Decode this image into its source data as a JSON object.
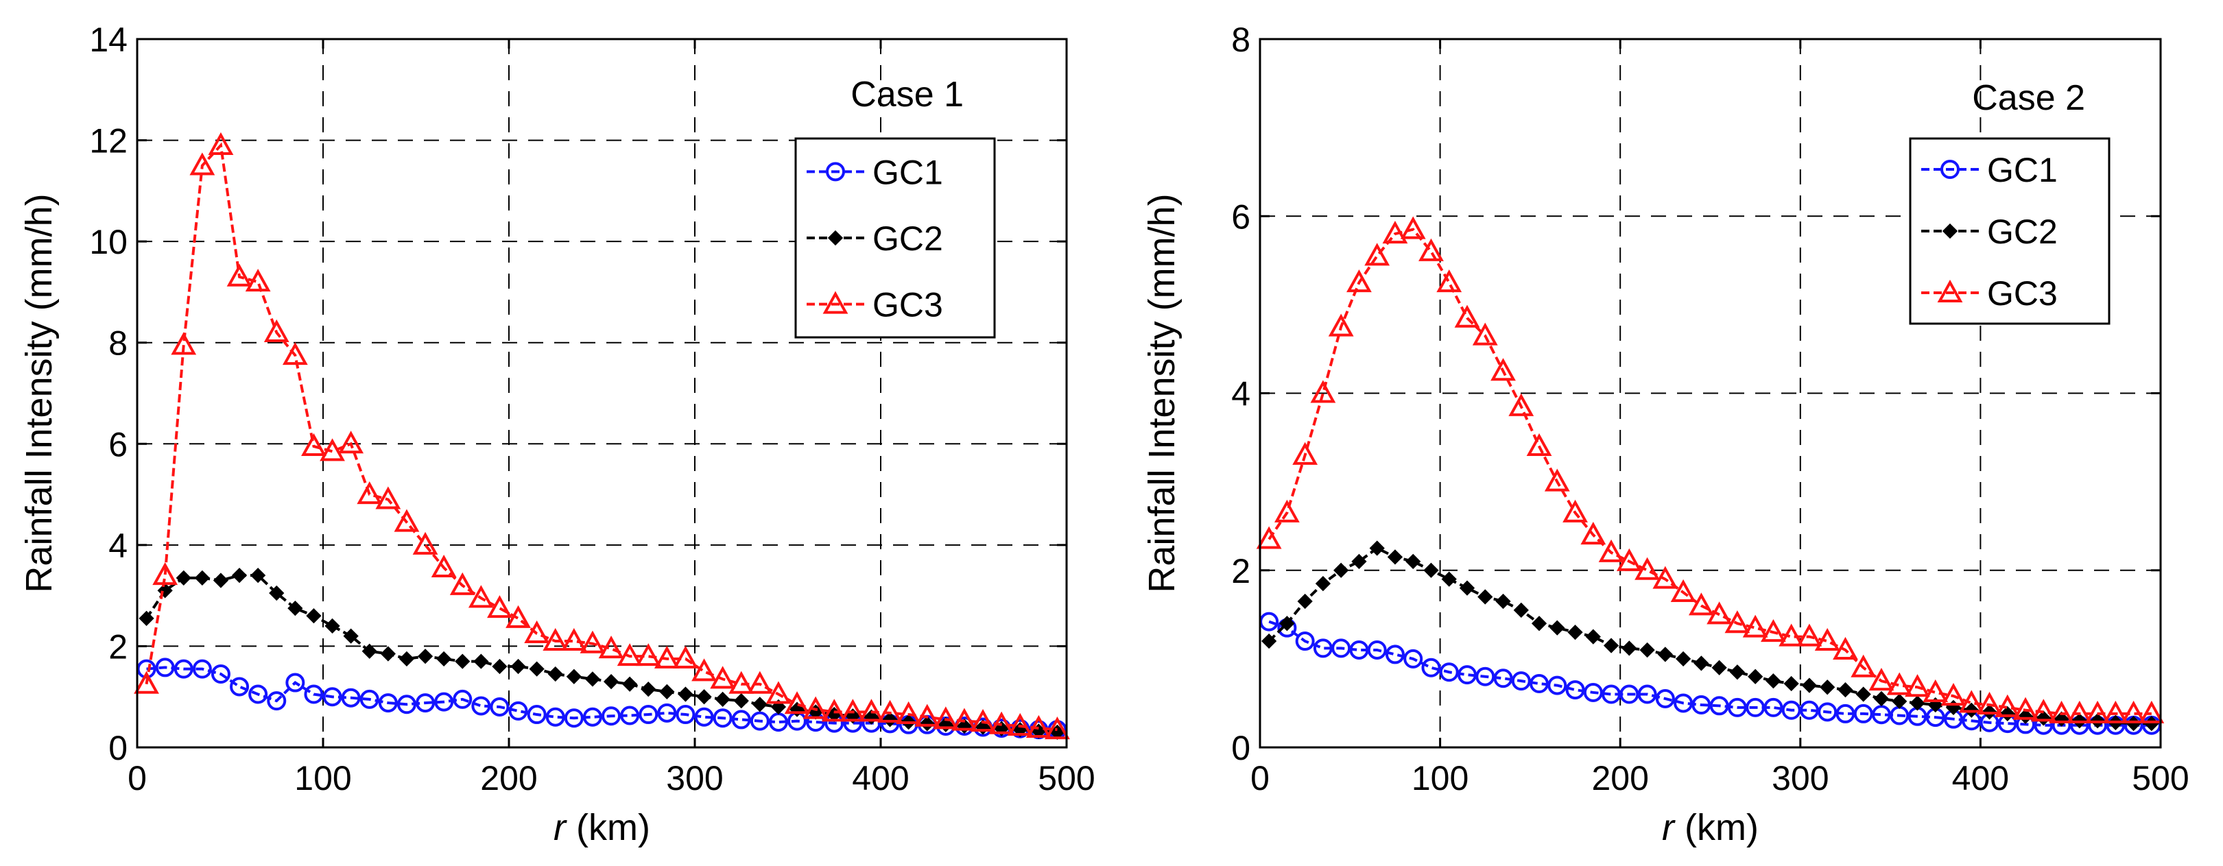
{
  "chart_data": [
    {
      "type": "line",
      "annotation": "Case 1",
      "xlabel_italic": "r",
      "xlabel_rest": " (km)",
      "ylabel": "Rainfall Intensity (mm/h)",
      "xlim": [
        0,
        500
      ],
      "ylim": [
        0,
        14
      ],
      "xticks": [
        0,
        100,
        200,
        300,
        400,
        500
      ],
      "yticks": [
        0,
        2,
        4,
        6,
        8,
        10,
        12,
        14
      ],
      "grid": true,
      "legend": "upper-right",
      "x": [
        5,
        15,
        25,
        35,
        45,
        55,
        65,
        75,
        85,
        95,
        105,
        115,
        125,
        135,
        145,
        155,
        165,
        175,
        185,
        195,
        205,
        215,
        225,
        235,
        245,
        255,
        265,
        275,
        285,
        295,
        305,
        315,
        325,
        335,
        345,
        355,
        365,
        375,
        385,
        395,
        405,
        415,
        425,
        435,
        445,
        455,
        465,
        475,
        485,
        495
      ],
      "series": [
        {
          "name": "GC1",
          "color": "#1414ff",
          "marker": "circle",
          "values": [
            1.55,
            1.58,
            1.55,
            1.55,
            1.45,
            1.2,
            1.05,
            0.92,
            1.28,
            1.05,
            1.0,
            0.98,
            0.95,
            0.88,
            0.85,
            0.88,
            0.9,
            0.95,
            0.82,
            0.8,
            0.72,
            0.65,
            0.6,
            0.58,
            0.6,
            0.62,
            0.63,
            0.65,
            0.68,
            0.65,
            0.6,
            0.58,
            0.55,
            0.52,
            0.5,
            0.52,
            0.5,
            0.48,
            0.48,
            0.48,
            0.47,
            0.45,
            0.45,
            0.42,
            0.42,
            0.4,
            0.38,
            0.37,
            0.35,
            0.35
          ]
        },
        {
          "name": "GC2",
          "color": "#000000",
          "marker": "diamond",
          "values": [
            2.55,
            3.1,
            3.35,
            3.35,
            3.3,
            3.4,
            3.4,
            3.05,
            2.75,
            2.6,
            2.4,
            2.2,
            1.9,
            1.85,
            1.75,
            1.8,
            1.75,
            1.7,
            1.7,
            1.6,
            1.6,
            1.55,
            1.45,
            1.4,
            1.35,
            1.3,
            1.25,
            1.15,
            1.1,
            1.05,
            1.0,
            0.95,
            0.92,
            0.85,
            0.8,
            0.75,
            0.7,
            0.65,
            0.62,
            0.6,
            0.55,
            0.5,
            0.47,
            0.45,
            0.42,
            0.4,
            0.37,
            0.35,
            0.32,
            0.3
          ]
        },
        {
          "name": "GC3",
          "color": "#ff1414",
          "marker": "triangle",
          "values": [
            1.25,
            3.4,
            7.95,
            11.5,
            11.9,
            9.3,
            9.2,
            8.2,
            7.75,
            5.95,
            5.85,
            6.0,
            5.0,
            4.9,
            4.45,
            4.0,
            3.55,
            3.2,
            2.95,
            2.75,
            2.55,
            2.25,
            2.1,
            2.1,
            2.05,
            1.95,
            1.8,
            1.8,
            1.75,
            1.75,
            1.5,
            1.35,
            1.25,
            1.25,
            1.05,
            0.85,
            0.75,
            0.7,
            0.7,
            0.7,
            0.68,
            0.65,
            0.6,
            0.55,
            0.52,
            0.5,
            0.45,
            0.42,
            0.38,
            0.35
          ]
        }
      ]
    },
    {
      "type": "line",
      "annotation": "Case 2",
      "xlabel_italic": "r",
      "xlabel_rest": " (km)",
      "ylabel": "Rainfall Intensity (mm/h)",
      "xlim": [
        0,
        500
      ],
      "ylim": [
        0,
        8
      ],
      "xticks": [
        0,
        100,
        200,
        300,
        400,
        500
      ],
      "yticks": [
        0,
        2,
        4,
        6,
        8
      ],
      "grid": true,
      "legend": "upper-right",
      "x": [
        5,
        15,
        25,
        35,
        45,
        55,
        65,
        75,
        85,
        95,
        105,
        115,
        125,
        135,
        145,
        155,
        165,
        175,
        185,
        195,
        205,
        215,
        225,
        235,
        245,
        255,
        265,
        275,
        285,
        295,
        305,
        315,
        325,
        335,
        345,
        355,
        365,
        375,
        385,
        395,
        405,
        415,
        425,
        435,
        445,
        455,
        465,
        475,
        485,
        495
      ],
      "series": [
        {
          "name": "GC1",
          "color": "#1414ff",
          "marker": "circle",
          "values": [
            1.42,
            1.35,
            1.2,
            1.12,
            1.12,
            1.1,
            1.1,
            1.05,
            1.0,
            0.9,
            0.85,
            0.82,
            0.8,
            0.78,
            0.75,
            0.72,
            0.7,
            0.65,
            0.62,
            0.6,
            0.6,
            0.6,
            0.55,
            0.5,
            0.48,
            0.47,
            0.45,
            0.45,
            0.45,
            0.42,
            0.42,
            0.4,
            0.38,
            0.38,
            0.37,
            0.36,
            0.35,
            0.34,
            0.32,
            0.3,
            0.28,
            0.27,
            0.26,
            0.25,
            0.25,
            0.25,
            0.25,
            0.25,
            0.25,
            0.25
          ]
        },
        {
          "name": "GC2",
          "color": "#000000",
          "marker": "diamond",
          "values": [
            1.2,
            1.4,
            1.65,
            1.85,
            2.0,
            2.1,
            2.25,
            2.15,
            2.1,
            2.0,
            1.9,
            1.8,
            1.7,
            1.65,
            1.55,
            1.4,
            1.35,
            1.3,
            1.25,
            1.15,
            1.12,
            1.1,
            1.05,
            1.0,
            0.95,
            0.9,
            0.85,
            0.8,
            0.75,
            0.72,
            0.7,
            0.68,
            0.65,
            0.6,
            0.55,
            0.52,
            0.5,
            0.48,
            0.45,
            0.42,
            0.4,
            0.38,
            0.35,
            0.33,
            0.32,
            0.3,
            0.3,
            0.28,
            0.27,
            0.27
          ]
        },
        {
          "name": "GC3",
          "color": "#ff1414",
          "marker": "triangle",
          "values": [
            2.35,
            2.65,
            3.3,
            4.0,
            4.75,
            5.25,
            5.55,
            5.8,
            5.85,
            5.6,
            5.25,
            4.85,
            4.65,
            4.25,
            3.85,
            3.4,
            3.0,
            2.65,
            2.4,
            2.2,
            2.1,
            2.0,
            1.9,
            1.75,
            1.6,
            1.5,
            1.4,
            1.35,
            1.3,
            1.25,
            1.25,
            1.2,
            1.1,
            0.9,
            0.75,
            0.7,
            0.68,
            0.62,
            0.58,
            0.5,
            0.48,
            0.45,
            0.42,
            0.4,
            0.38,
            0.38,
            0.38,
            0.38,
            0.38,
            0.38
          ]
        }
      ]
    }
  ]
}
